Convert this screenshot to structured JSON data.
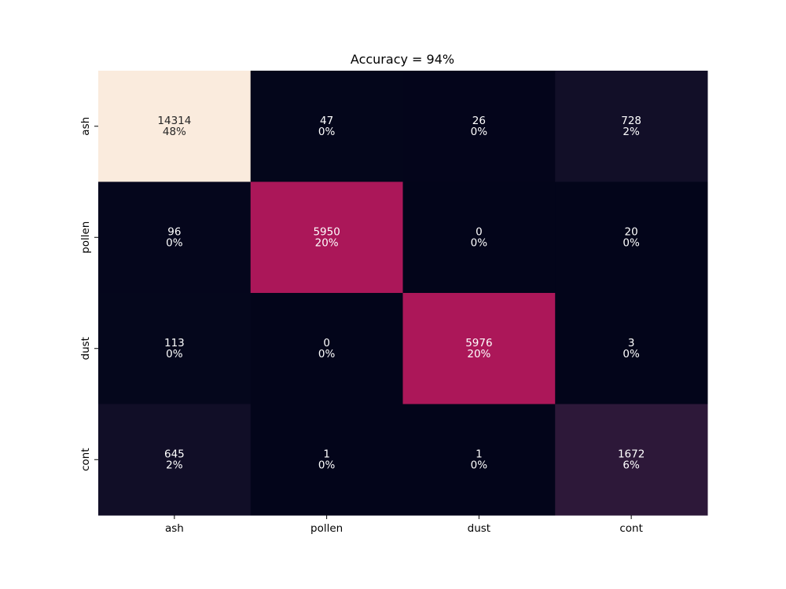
{
  "chart_data": {
    "type": "heatmap",
    "title": "Accuracy = 94%",
    "xlabel": "",
    "ylabel": "",
    "x_categories": [
      "ash",
      "pollen",
      "dust",
      "cont"
    ],
    "y_categories": [
      "ash",
      "pollen",
      "dust",
      "cont"
    ],
    "values": [
      [
        14314,
        47,
        26,
        728
      ],
      [
        96,
        5950,
        0,
        20
      ],
      [
        113,
        0,
        5976,
        3
      ],
      [
        645,
        1,
        1,
        1672
      ]
    ],
    "percent_labels": [
      [
        "48%",
        "0%",
        "0%",
        "2%"
      ],
      [
        "0%",
        "20%",
        "0%",
        "0%"
      ],
      [
        "0%",
        "0%",
        "20%",
        "0%"
      ],
      [
        "2%",
        "0%",
        "0%",
        "6%"
      ]
    ],
    "colorbar": false,
    "grid": false,
    "colors": {
      "colormap": "rocket",
      "low": "#03051a",
      "high": "#faebdd",
      "text_light": "#ffffff",
      "text_dark": "#262626"
    }
  }
}
